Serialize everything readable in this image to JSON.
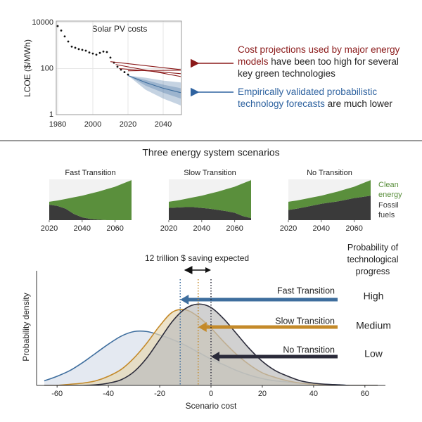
{
  "chart_data": [
    {
      "type": "line",
      "title": "Solar PV costs",
      "ylabel": "LCOE ($/MWh)",
      "log": true,
      "grid": true,
      "xlim": [
        1980,
        2050
      ],
      "xticks": [
        1980,
        2000,
        2020,
        2040
      ],
      "ylim": [
        1,
        10000
      ],
      "yticks": [
        1,
        100,
        10000
      ],
      "series": [
        {
          "color": "#111111",
          "marker": "dot",
          "x": [
            1980,
            1982,
            1984,
            1986,
            1988,
            1990,
            1992,
            1994,
            1996,
            1998,
            2000,
            2002,
            2004,
            2006,
            2008,
            2010,
            2012,
            2014,
            2016,
            2018,
            2020
          ],
          "values": [
            7000,
            4500,
            2500,
            1500,
            900,
            800,
            700,
            650,
            600,
            500,
            450,
            400,
            480,
            550,
            520,
            300,
            180,
            120,
            90,
            70,
            55
          ]
        },
        {
          "color": "#8b1a1a",
          "x": [
            2010,
            2050
          ],
          "values": [
            200,
            90
          ]
        },
        {
          "color": "#8b1a1a",
          "x": [
            2013,
            2050
          ],
          "values": [
            150,
            45
          ]
        },
        {
          "color": "#8b1a1a",
          "x": [
            2015,
            2050
          ],
          "values": [
            100,
            60
          ]
        },
        {
          "color": "#8b1a1a",
          "x": [
            2020,
            2050
          ],
          "values": [
            80,
            85
          ]
        },
        {
          "color": "#3e6e9e",
          "x": [
            2020,
            2030,
            2040,
            2050
          ],
          "values": [
            50,
            25,
            14,
            9
          ]
        }
      ],
      "bands": [
        {
          "color": "#3e6e9e",
          "x": [
            2020,
            2030,
            2040,
            2050
          ],
          "lower": [
            50,
            12,
            5,
            2.5
          ],
          "upper": [
            50,
            40,
            30,
            25
          ]
        },
        {
          "color": "#3e6e9e",
          "x": [
            2020,
            2030,
            2040,
            2050
          ],
          "lower": [
            50,
            18,
            9,
            5
          ],
          "upper": [
            50,
            32,
            20,
            14
          ]
        }
      ],
      "annotations": [
        {
          "parts": [
            {
              "text": "Cost projections used by major energy models",
              "color": "#8b1a1a"
            },
            {
              "text": "have been too high for several key green technologies",
              "color": "#222222"
            }
          ]
        },
        {
          "parts": [
            {
              "text": "Empirically validated probabilistic technology forecasts",
              "color": "#2f63a0"
            },
            {
              "text": "are much lower",
              "color": "#222222"
            }
          ]
        }
      ]
    },
    {
      "type": "area",
      "title": "Three energy system scenarios",
      "x": [
        2020,
        2025,
        2030,
        2035,
        2040,
        2045,
        2050,
        2055,
        2060,
        2065,
        2070
      ],
      "xlim": [
        2020,
        2070
      ],
      "xticks": [
        2020,
        2040,
        2060
      ],
      "ylim": [
        0,
        1
      ],
      "legend": [
        {
          "name": "Clean energy",
          "color": "#5a8f3c"
        },
        {
          "name": "Fossil fuels",
          "color": "#3a3a3a"
        }
      ],
      "panels": [
        {
          "title": "Fast Transition",
          "fossil": [
            0.38,
            0.35,
            0.28,
            0.15,
            0.07,
            0.03,
            0.01,
            0,
            0,
            0,
            0
          ],
          "clean": [
            0.07,
            0.13,
            0.24,
            0.41,
            0.53,
            0.62,
            0.69,
            0.76,
            0.82,
            0.9,
            0.98
          ]
        },
        {
          "title": "Slow Transition",
          "fossil": [
            0.3,
            0.31,
            0.32,
            0.32,
            0.3,
            0.28,
            0.25,
            0.22,
            0.18,
            0.1,
            0.05
          ],
          "clean": [
            0.15,
            0.17,
            0.2,
            0.24,
            0.3,
            0.37,
            0.45,
            0.54,
            0.64,
            0.8,
            0.93
          ]
        },
        {
          "title": "No Transition",
          "fossil": [
            0.25,
            0.28,
            0.32,
            0.36,
            0.4,
            0.43,
            0.46,
            0.5,
            0.54,
            0.57,
            0.6
          ],
          "clean": [
            0.2,
            0.2,
            0.2,
            0.2,
            0.2,
            0.22,
            0.24,
            0.26,
            0.28,
            0.33,
            0.38
          ]
        }
      ]
    },
    {
      "type": "density",
      "xlabel": "Scenario cost",
      "ylabel": "Probability density",
      "xlim": [
        -68,
        68
      ],
      "xticks": [
        -60,
        -40,
        -20,
        0,
        20,
        40,
        60
      ],
      "ylim": [
        0,
        1
      ],
      "x": [
        -65,
        -60,
        -55,
        -50,
        -45,
        -40,
        -35,
        -30,
        -25,
        -20,
        -15,
        -10,
        -5,
        0,
        5,
        10,
        15,
        20,
        25,
        30,
        35,
        40,
        45,
        50,
        55,
        60,
        65
      ],
      "annotation": "12 trillion $ saving expected",
      "progress_title": "Probability of technological progress",
      "series": [
        {
          "name": "Fast Transition",
          "color": "#3e6e9e",
          "mean": -12,
          "progress": "High",
          "values": [
            0.04,
            0.08,
            0.13,
            0.2,
            0.28,
            0.36,
            0.43,
            0.47,
            0.47,
            0.44,
            0.4,
            0.35,
            0.29,
            0.23,
            0.18,
            0.13,
            0.09,
            0.06,
            0.04,
            0.03,
            0.02,
            0.01,
            0.01,
            0.005,
            0,
            0,
            0
          ]
        },
        {
          "name": "Slow Transition",
          "color": "#c48a2a",
          "mean": -5,
          "progress": "Medium",
          "values": [
            0,
            0,
            0.01,
            0.02,
            0.04,
            0.08,
            0.14,
            0.24,
            0.37,
            0.52,
            0.64,
            0.66,
            0.6,
            0.5,
            0.38,
            0.27,
            0.18,
            0.11,
            0.07,
            0.04,
            0.02,
            0.01,
            0.005,
            0,
            0,
            0,
            0
          ]
        },
        {
          "name": "No Transition",
          "color": "#2b2b3a",
          "mean": 0,
          "progress": "Low",
          "values": [
            0,
            0,
            0,
            0,
            0.005,
            0.02,
            0.05,
            0.12,
            0.24,
            0.4,
            0.56,
            0.67,
            0.71,
            0.68,
            0.58,
            0.45,
            0.32,
            0.21,
            0.13,
            0.08,
            0.04,
            0.02,
            0.01,
            0.005,
            0,
            0,
            0
          ]
        }
      ]
    }
  ]
}
